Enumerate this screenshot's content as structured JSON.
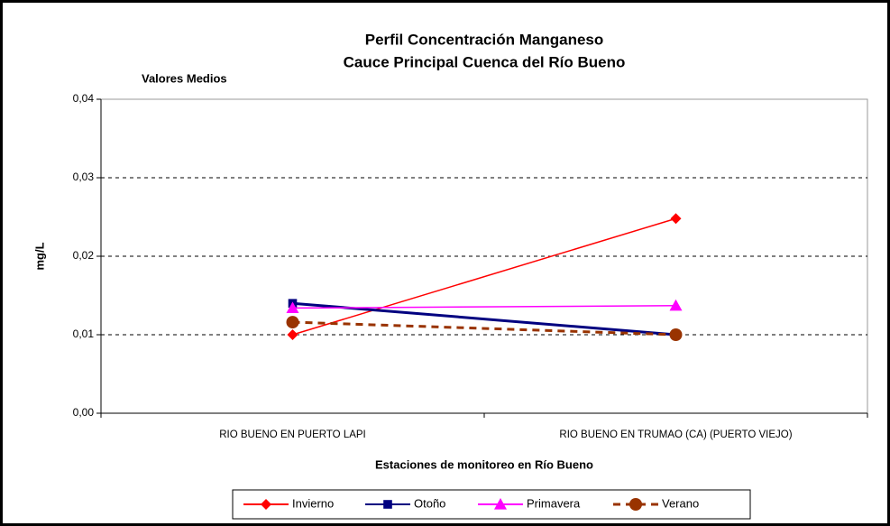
{
  "chart_data": {
    "type": "line",
    "title": [
      "Perfil  Concentración Manganeso",
      "Cauce Principal Cuenca del Río Bueno"
    ],
    "annotation": "Valores Medios",
    "ylabel": "mg/L",
    "xlabel": "Estaciones de monitoreo en Río Bueno",
    "categories": [
      "RIO BUENO EN PUERTO LAPI",
      "RIO BUENO EN TRUMAO (CA)  (PUERTO VIEJO)"
    ],
    "series": [
      {
        "name": "Invierno",
        "color": "#ff0000",
        "marker": "diamond",
        "values": [
          0.01,
          0.0248
        ]
      },
      {
        "name": "Otoño",
        "color": "#000080",
        "marker": "square",
        "values": [
          0.014,
          0.01
        ]
      },
      {
        "name": "Primavera",
        "color": "#ff00ff",
        "marker": "triangle",
        "values": [
          0.0134,
          0.0137
        ]
      },
      {
        "name": "Verano",
        "color": "#993300",
        "marker": "circle",
        "dashed": true,
        "values": [
          0.0116,
          0.01
        ]
      }
    ],
    "ylim": [
      0,
      0.04
    ],
    "yticks": [
      {
        "value": 0,
        "label": "0,00"
      },
      {
        "value": 0.01,
        "label": "0,01"
      },
      {
        "value": 0.02,
        "label": "0,02"
      },
      {
        "value": 0.03,
        "label": "0,03"
      },
      {
        "value": 0.04,
        "label": "0,04"
      }
    ],
    "grid": true,
    "legend": "bottom"
  }
}
